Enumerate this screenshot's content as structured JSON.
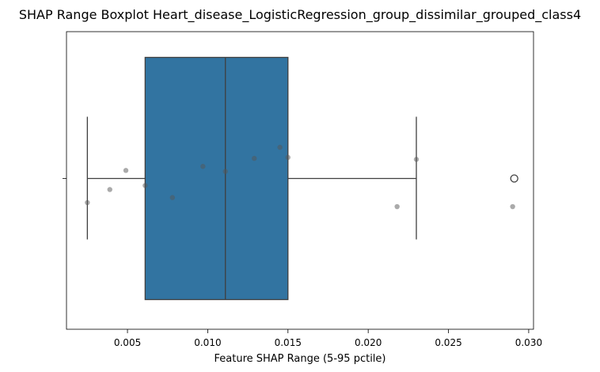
{
  "chart_data": {
    "type": "boxplot",
    "title": "SHAP Range Boxplot Heart_disease_LogisticRegression_group_dissimilar_grouped_class4",
    "xlabel": "Feature SHAP Range (5-95 pctile)",
    "ylabel": "",
    "xlim": [
      0.0012,
      0.0303
    ],
    "x_ticks": [
      0.005,
      0.01,
      0.015,
      0.02,
      0.025,
      0.03
    ],
    "x_tick_labels": [
      "0.005",
      "0.010",
      "0.015",
      "0.020",
      "0.025",
      "0.030"
    ],
    "grid": false,
    "box": {
      "whisker_low": 0.0025,
      "q1": 0.0061,
      "median": 0.0111,
      "q3": 0.015,
      "whisker_high": 0.023,
      "outliers": [
        0.0291
      ],
      "color": "#3274a1"
    },
    "points": [
      {
        "x": 0.0025,
        "jitter": -0.12
      },
      {
        "x": 0.0039,
        "jitter": -0.055
      },
      {
        "x": 0.0049,
        "jitter": 0.04
      },
      {
        "x": 0.0061,
        "jitter": -0.035
      },
      {
        "x": 0.0078,
        "jitter": -0.095
      },
      {
        "x": 0.0097,
        "jitter": 0.06
      },
      {
        "x": 0.0111,
        "jitter": 0.035
      },
      {
        "x": 0.0129,
        "jitter": 0.1
      },
      {
        "x": 0.0145,
        "jitter": 0.155
      },
      {
        "x": 0.015,
        "jitter": 0.105
      },
      {
        "x": 0.0218,
        "jitter": -0.14
      },
      {
        "x": 0.023,
        "jitter": 0.095
      },
      {
        "x": 0.029,
        "jitter": -0.14
      }
    ],
    "point_color": "#555555"
  }
}
